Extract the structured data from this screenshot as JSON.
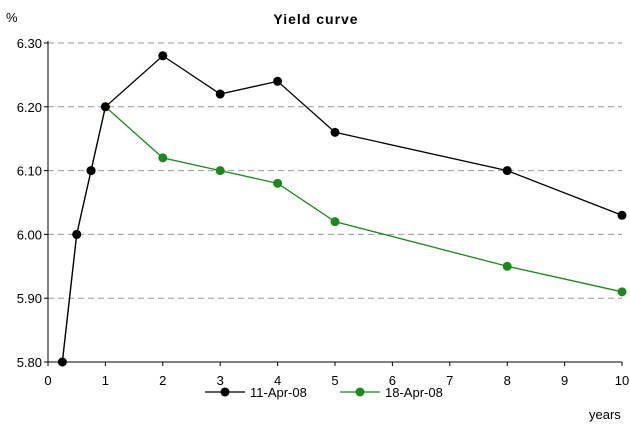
{
  "chart_data": {
    "type": "line",
    "title": "Yield curve",
    "ylabel": "%",
    "xlabel": "years",
    "xlim": [
      0,
      10
    ],
    "ylim": [
      5.8,
      6.3
    ],
    "x_ticks": [
      0,
      1,
      2,
      3,
      4,
      5,
      6,
      7,
      8,
      9,
      10
    ],
    "y_ticks": [
      "5.80",
      "5.90",
      "6.00",
      "6.10",
      "6.20",
      "6.30"
    ],
    "grid": "horizontal dashed",
    "legend_position": "bottom",
    "series": [
      {
        "name": "11-Apr-08",
        "color": "#000000",
        "points": [
          [
            0.25,
            5.8
          ],
          [
            0.5,
            6.0
          ],
          [
            0.75,
            6.1
          ],
          [
            1,
            6.2
          ],
          [
            2,
            6.28
          ],
          [
            3,
            6.22
          ],
          [
            4,
            6.24
          ],
          [
            5,
            6.16
          ],
          [
            8,
            6.1
          ],
          [
            10,
            6.03
          ]
        ]
      },
      {
        "name": "18-Apr-08",
        "color": "#1a8a1a",
        "points": [
          [
            0.25,
            5.8
          ],
          [
            0.5,
            6.0
          ],
          [
            0.75,
            6.1
          ],
          [
            1,
            6.2
          ],
          [
            2,
            6.12
          ],
          [
            3,
            6.1
          ],
          [
            4,
            6.08
          ],
          [
            5,
            6.02
          ],
          [
            8,
            5.95
          ],
          [
            10,
            5.91
          ]
        ]
      }
    ]
  }
}
